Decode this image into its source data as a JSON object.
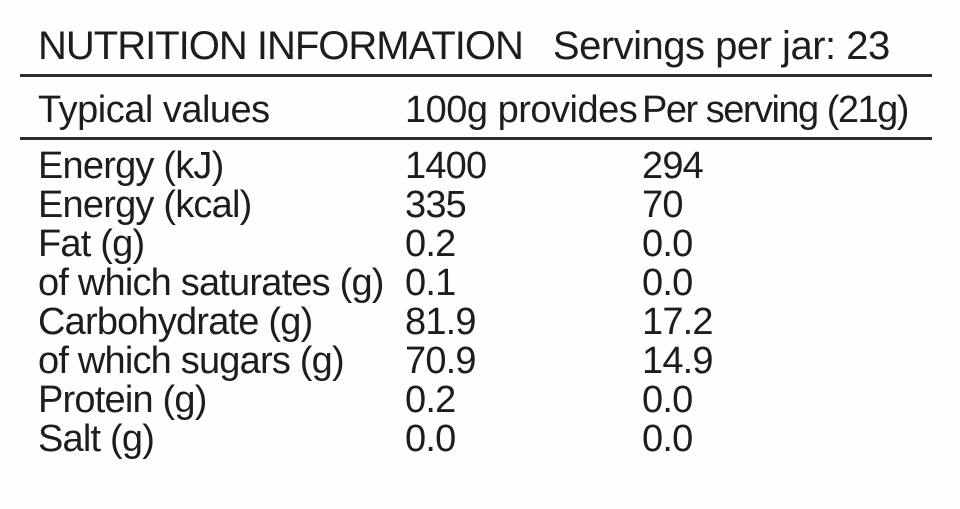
{
  "label": {
    "title": "NUTRITION INFORMATION",
    "servings_note": "Servings per jar: 23",
    "columns": [
      "Typical values",
      "100g provides",
      "Per serving (21g)"
    ],
    "rows": [
      [
        "Energy (kJ)",
        "1400",
        "294"
      ],
      [
        "Energy (kcal)",
        "335",
        "70"
      ],
      [
        "Fat (g)",
        "0.2",
        "0.0"
      ],
      [
        "of which saturates (g)",
        "0.1",
        "0.0"
      ],
      [
        "Carbohydrate (g)",
        "81.9",
        "17.2"
      ],
      [
        "of which sugars (g)",
        "70.9",
        "14.9"
      ],
      [
        "Protein (g)",
        "0.2",
        "0.0"
      ],
      [
        "Salt (g)",
        "0.0",
        "0.0"
      ]
    ],
    "colors": {
      "text": "#1d1d1d",
      "rule": "#2d2d2d",
      "background": "#ffffff"
    }
  }
}
